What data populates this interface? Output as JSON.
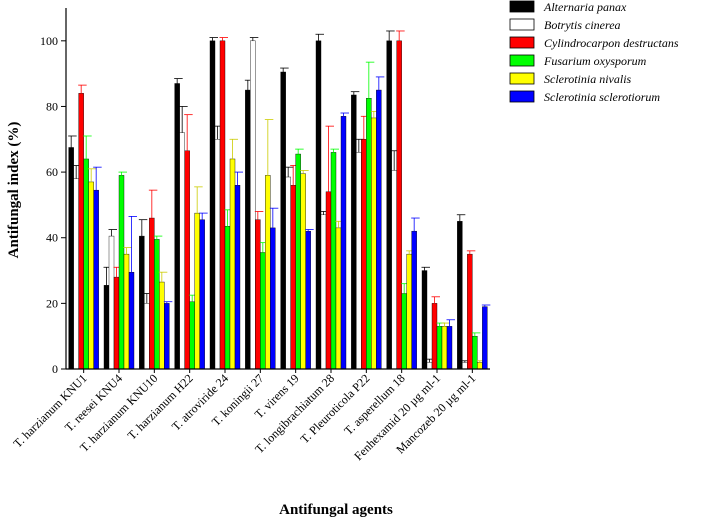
{
  "chart_data": {
    "type": "bar",
    "title": "",
    "xlabel": "Antifungal agents",
    "ylabel": "Antifungal index (%)",
    "ylim": [
      0,
      110
    ],
    "yticks": [
      0,
      20,
      40,
      60,
      80,
      100
    ],
    "grid": false,
    "legend_position": "top-right",
    "categories": [
      "T. harzianum KNU1",
      "T. reesei KNU4",
      "T. harzianum KNU10",
      "T. harzianum H22",
      "T. atroviride 24",
      "T. koningii 27",
      "T. virens 19",
      "T. longibrachiatum 28",
      "T. Pleuroticola P22",
      "T. asperellum 18",
      "Fenhexamid 20 µg ml-1",
      "Mancozeb 20 µg ml-1"
    ],
    "series": [
      {
        "name": "Alternaria panax",
        "color": "#000000",
        "values": [
          67.5,
          25.5,
          40.5,
          87,
          100,
          85,
          90.5,
          100,
          83.5,
          100,
          30,
          45
        ],
        "errors": [
          3.5,
          5.5,
          5,
          1.5,
          1,
          3,
          1.2,
          2,
          1,
          3,
          1,
          2
        ]
      },
      {
        "name": "Botrytis cinerea",
        "color": "#ffffff",
        "values": [
          58,
          40.5,
          20,
          72,
          70,
          100,
          58.5,
          47,
          66,
          60.5,
          2,
          2
        ],
        "errors": [
          4,
          2,
          3,
          8,
          4,
          1,
          3,
          1,
          4,
          6,
          1,
          0.5
        ]
      },
      {
        "name": "Cylindrocarpon destructans",
        "color": "#ff0000",
        "values": [
          84,
          28,
          46,
          66.5,
          100,
          45.5,
          56,
          54,
          70,
          100,
          20,
          35
        ],
        "errors": [
          2.5,
          3,
          8.5,
          11,
          1,
          2.5,
          6,
          20,
          7,
          3,
          2,
          1
        ]
      },
      {
        "name": "Fusarium oxysporum",
        "color": "#00ff00",
        "values": [
          64,
          59,
          39.5,
          20.5,
          43.5,
          35.5,
          65.5,
          66,
          82.5,
          23,
          13,
          10
        ],
        "errors": [
          7,
          1,
          1,
          2,
          5,
          3,
          1.5,
          1,
          11,
          3,
          1,
          1
        ]
      },
      {
        "name": "Sclerotinia nivalis",
        "color": "#ffff00",
        "values": [
          57,
          35,
          26.5,
          47.5,
          64,
          59,
          59.5,
          43,
          76.5,
          35,
          13,
          2
        ],
        "errors": [
          4,
          2,
          3,
          8,
          6,
          17,
          1,
          2,
          2,
          1,
          1,
          0.5
        ]
      },
      {
        "name": "Sclerotinia sclerotiorum",
        "color": "#0000ff",
        "values": [
          54.5,
          29.5,
          20,
          45.5,
          56,
          43,
          42,
          77,
          85,
          42,
          13,
          19
        ],
        "errors": [
          7,
          17,
          0.5,
          2,
          4,
          6,
          0.5,
          1,
          4,
          4,
          2,
          0.5
        ]
      }
    ]
  }
}
